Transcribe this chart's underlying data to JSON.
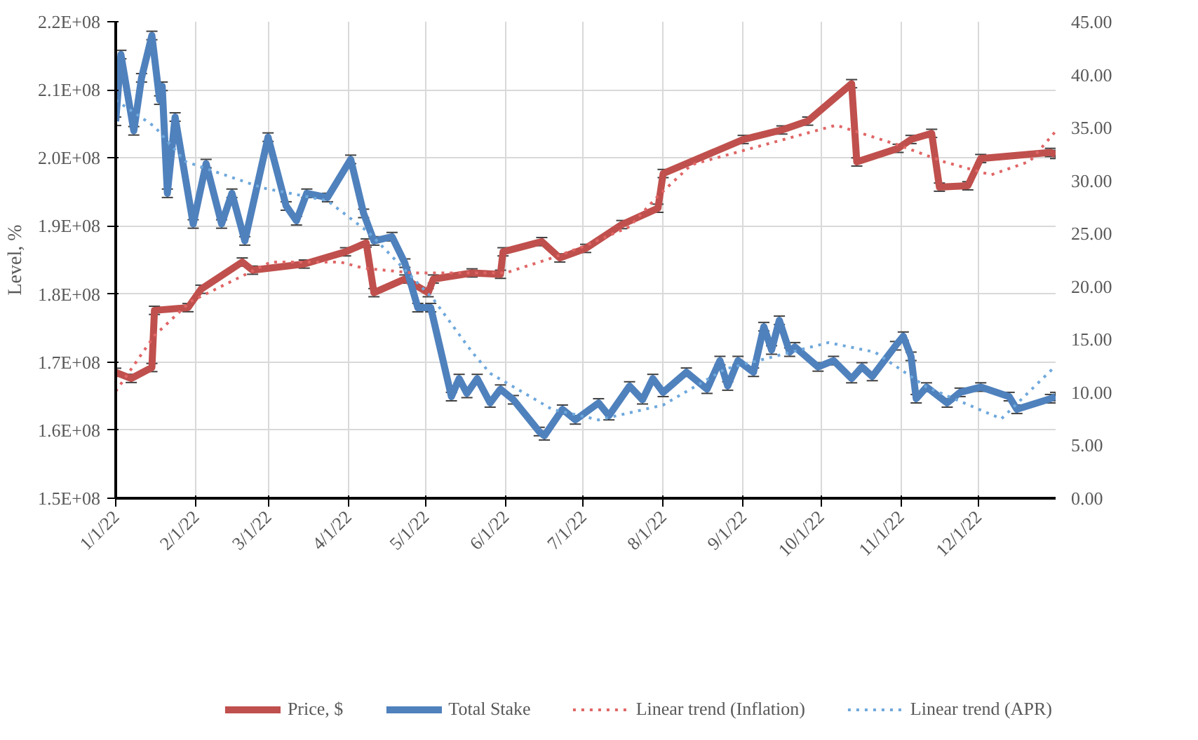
{
  "chart_data": {
    "type": "line",
    "ylabel": "Level, %",
    "legend": "bottom",
    "grid": true,
    "marker": "none",
    "xlim": [
      "2022-01-01",
      "2022-12-31"
    ],
    "xticks": [
      {
        "value": "2022-01-01",
        "label": "1/1/22"
      },
      {
        "value": "2022-02-01",
        "label": "2/1/22"
      },
      {
        "value": "2022-03-01",
        "label": "3/1/22"
      },
      {
        "value": "2022-04-01",
        "label": "4/1/22"
      },
      {
        "value": "2022-05-01",
        "label": "5/1/22"
      },
      {
        "value": "2022-06-01",
        "label": "6/1/22"
      },
      {
        "value": "2022-07-01",
        "label": "7/1/22"
      },
      {
        "value": "2022-08-01",
        "label": "8/1/22"
      },
      {
        "value": "2022-09-01",
        "label": "9/1/22"
      },
      {
        "value": "2022-10-01",
        "label": "10/1/22"
      },
      {
        "value": "2022-11-01",
        "label": "11/1/22"
      },
      {
        "value": "2022-12-01",
        "label": "12/1/22"
      }
    ],
    "ylim": [
      150000000,
      220000000
    ],
    "yticks": [
      {
        "value": 150000000,
        "label": "1.5E+08"
      },
      {
        "value": 160000000,
        "label": "1.6E+08"
      },
      {
        "value": 170000000,
        "label": "1.7E+08"
      },
      {
        "value": 180000000,
        "label": "1.8E+08"
      },
      {
        "value": 190000000,
        "label": "1.9E+08"
      },
      {
        "value": 200000000,
        "label": "2.0E+08"
      },
      {
        "value": 210000000,
        "label": "2.1E+08"
      },
      {
        "value": 220000000,
        "label": "2.2E+08"
      }
    ],
    "y2lim": [
      0,
      45
    ],
    "y2ticks": [
      {
        "value": 0,
        "label": "0.00"
      },
      {
        "value": 5,
        "label": "5.00"
      },
      {
        "value": 10,
        "label": "10.00"
      },
      {
        "value": 15,
        "label": "15.00"
      },
      {
        "value": 20,
        "label": "20.00"
      },
      {
        "value": 25,
        "label": "25.00"
      },
      {
        "value": 30,
        "label": "30.00"
      },
      {
        "value": 35,
        "label": "35.00"
      },
      {
        "value": 40,
        "label": "40.00"
      },
      {
        "value": 45,
        "label": "45.00"
      }
    ],
    "series": [
      {
        "name": "Price, $",
        "color": "#c0504d",
        "line_style": "solid",
        "x": [
          "2022-01-01",
          "2022-01-07",
          "2022-01-15",
          "2022-01-16",
          "2022-01-29",
          "2022-02-03",
          "2022-02-19",
          "2022-02-23",
          "2022-03-15",
          "2022-03-31",
          "2022-04-08",
          "2022-04-11",
          "2022-04-23",
          "2022-05-02",
          "2022-05-04",
          "2022-05-19",
          "2022-05-30",
          "2022-05-31",
          "2022-06-15",
          "2022-06-22",
          "2022-07-02",
          "2022-07-16",
          "2022-07-30",
          "2022-08-01",
          "2022-09-01",
          "2022-09-16",
          "2022-09-26",
          "2022-10-13",
          "2022-10-15",
          "2022-10-31",
          "2022-11-05",
          "2022-11-13",
          "2022-11-16",
          "2022-11-27",
          "2022-12-02",
          "2022-12-29",
          "2022-12-31"
        ],
        "values": [
          168500000,
          167600000,
          169200000,
          177600000,
          178000000,
          180700000,
          184700000,
          183500000,
          184400000,
          186200000,
          187500000,
          180200000,
          182200000,
          180200000,
          182200000,
          183100000,
          182900000,
          186200000,
          187700000,
          185300000,
          186700000,
          190200000,
          192600000,
          197700000,
          202700000,
          204100000,
          205400000,
          210900000,
          199400000,
          201400000,
          202700000,
          203600000,
          195700000,
          195900000,
          199900000,
          200800000,
          200500000
        ],
        "errors": [
          600000,
          600000,
          600000,
          600000,
          600000,
          600000,
          600000,
          600000,
          600000,
          600000,
          600000,
          600000,
          600000,
          600000,
          600000,
          600000,
          600000,
          600000,
          600000,
          600000,
          600000,
          600000,
          600000,
          600000,
          600000,
          600000,
          600000,
          600000,
          600000,
          600000,
          600000,
          600000,
          600000,
          600000,
          600000,
          600000,
          600000
        ]
      },
      {
        "name": "Total Stake",
        "color": "#4f81bd",
        "axis": "y2",
        "line_style": "solid",
        "x": [
          "2022-01-01",
          "2022-01-03",
          "2022-01-08",
          "2022-01-11",
          "2022-01-15",
          "2022-01-18",
          "2022-01-19",
          "2022-01-21",
          "2022-01-24",
          "2022-01-31",
          "2022-02-05",
          "2022-02-11",
          "2022-02-15",
          "2022-02-20",
          "2022-03-01",
          "2022-03-08",
          "2022-03-12",
          "2022-03-16",
          "2022-03-24",
          "2022-04-02",
          "2022-04-07",
          "2022-04-11",
          "2022-04-18",
          "2022-04-23",
          "2022-04-28",
          "2022-05-03",
          "2022-05-11",
          "2022-05-14",
          "2022-05-17",
          "2022-05-21",
          "2022-05-26",
          "2022-05-30",
          "2022-06-04",
          "2022-06-14",
          "2022-06-16",
          "2022-06-23",
          "2022-06-28",
          "2022-07-07",
          "2022-07-11",
          "2022-07-19",
          "2022-07-24",
          "2022-07-28",
          "2022-08-01",
          "2022-08-10",
          "2022-08-18",
          "2022-08-23",
          "2022-08-26",
          "2022-08-30",
          "2022-09-05",
          "2022-09-09",
          "2022-09-12",
          "2022-09-15",
          "2022-09-19",
          "2022-09-21",
          "2022-09-30",
          "2022-10-06",
          "2022-10-13",
          "2022-10-17",
          "2022-10-21",
          "2022-10-30",
          "2022-11-02",
          "2022-11-05",
          "2022-11-07",
          "2022-11-11",
          "2022-11-19",
          "2022-11-24",
          "2022-12-02",
          "2022-12-13",
          "2022-12-16",
          "2022-12-29",
          "2022-12-31"
        ],
        "values": [
          35.6,
          41.9,
          34.7,
          39.7,
          43.7,
          37.6,
          38.9,
          28.8,
          36.0,
          25.9,
          31.6,
          25.9,
          28.8,
          24.3,
          34.1,
          27.6,
          26.2,
          28.8,
          28.4,
          32.0,
          26.9,
          24.3,
          24.7,
          22.2,
          18.0,
          18.0,
          9.6,
          11.3,
          9.9,
          11.3,
          9.0,
          10.3,
          9.3,
          6.3,
          5.9,
          8.4,
          7.4,
          9.0,
          7.8,
          10.6,
          9.3,
          11.3,
          10.0,
          11.9,
          10.3,
          13.0,
          10.6,
          13.0,
          11.9,
          16.2,
          14.0,
          16.8,
          13.8,
          14.3,
          12.4,
          13.0,
          11.3,
          12.4,
          11.5,
          14.4,
          15.3,
          13.4,
          9.4,
          10.5,
          9.0,
          10.0,
          10.5,
          9.6,
          8.4,
          9.4,
          9.6
        ],
        "errors": [
          0.4,
          0.4,
          0.4,
          0.4,
          0.4,
          0.4,
          0.4,
          0.4,
          0.4,
          0.4,
          0.4,
          0.4,
          0.4,
          0.4,
          0.4,
          0.4,
          0.4,
          0.4,
          0.4,
          0.4,
          0.4,
          0.4,
          0.4,
          0.4,
          0.4,
          0.4,
          0.4,
          0.4,
          0.4,
          0.4,
          0.4,
          0.4,
          0.4,
          0.4,
          0.4,
          0.4,
          0.4,
          0.4,
          0.4,
          0.4,
          0.4,
          0.4,
          0.4,
          0.4,
          0.4,
          0.4,
          0.4,
          0.4,
          0.4,
          0.4,
          0.4,
          0.4,
          0.4,
          0.4,
          0.4,
          0.4,
          0.4,
          0.4,
          0.4,
          0.4,
          0.4,
          0.4,
          0.4,
          0.4,
          0.4,
          0.4,
          0.4,
          0.4,
          0.4,
          0.4,
          0.4
        ]
      },
      {
        "name": "Linear trend (Inflation)",
        "color": "#e06666",
        "line_style": "dotted",
        "x": [
          "2022-01-01",
          "2022-01-16",
          "2022-01-30",
          "2022-03-02",
          "2022-03-29",
          "2022-04-07",
          "2022-04-26",
          "2022-06-01",
          "2022-06-19",
          "2022-07-02",
          "2022-07-19",
          "2022-07-30",
          "2022-08-12",
          "2022-10-07",
          "2022-10-31",
          "2022-11-18",
          "2022-12-06",
          "2022-12-21",
          "2022-12-31"
        ],
        "values": [
          165700000,
          173900000,
          178900000,
          184700000,
          184700000,
          183800000,
          183100000,
          183100000,
          185300000,
          187100000,
          189900000,
          194400000,
          199000000,
          204800000,
          201900000,
          199400000,
          197500000,
          199500000,
          203900000
        ]
      },
      {
        "name": "Linear trend (APR)",
        "color": "#6fa8dc",
        "axis": "y2",
        "line_style": "dotted",
        "x": [
          "2022-01-01",
          "2022-01-16",
          "2022-01-28",
          "2022-02-27",
          "2022-03-24",
          "2022-04-09",
          "2022-05-04",
          "2022-05-19",
          "2022-05-26",
          "2022-06-19",
          "2022-07-07",
          "2022-08-01",
          "2022-08-25",
          "2022-10-04",
          "2022-10-22",
          "2022-11-11",
          "2022-12-10",
          "2022-12-31"
        ],
        "values": [
          37.6,
          35.1,
          31.8,
          29.3,
          28.1,
          25.1,
          18.8,
          13.8,
          11.8,
          8.4,
          7.4,
          8.8,
          12.2,
          14.7,
          13.8,
          10.5,
          7.5,
          12.5
        ]
      }
    ]
  }
}
